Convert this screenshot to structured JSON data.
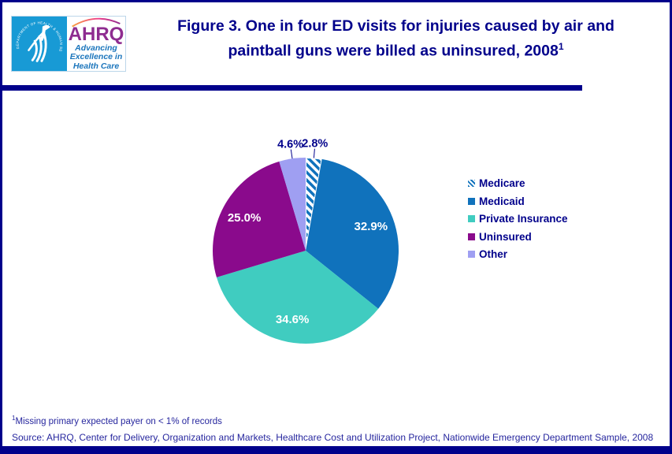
{
  "header": {
    "logo": {
      "hhs_circular_text": "DEPARTMENT OF HEALTH & HUMAN SERVICES • USA",
      "ahrq": "AHRQ",
      "tagline_lines": [
        "Advancing",
        "Excellence in",
        "Health Care"
      ]
    },
    "title_line1": "Figure 3. One in four ED visits for injuries caused by air and",
    "title_line2": "paintball guns were billed as uninsured, 2008",
    "title_superscript": "1"
  },
  "chart_data": {
    "type": "pie",
    "title": "Figure 3. One in four ED visits for injuries caused by air and paintball guns were billed as uninsured, 2008",
    "categories": [
      "Medicare",
      "Medicaid",
      "Private Insurance",
      "Uninsured",
      "Other"
    ],
    "values": [
      2.8,
      32.9,
      34.6,
      25.0,
      4.6
    ],
    "labels": [
      "2.8%",
      "32.9%",
      "34.6%",
      "25.0%",
      "4.6%"
    ],
    "colors": [
      "hatch",
      "#1072BC",
      "#40CCC0",
      "#8A0A8C",
      "#9F9FF2"
    ],
    "hatch_stripe_color": "#1072BC",
    "label_placement": [
      "outside",
      "inside",
      "inside",
      "inside",
      "outside"
    ],
    "inside_label_color": "#FFFFFF",
    "outside_label_color": "#00008B",
    "start_angle_deg": 0,
    "direction": "clockwise",
    "legend_position": "right",
    "legend_text_color": "#00008B"
  },
  "footer": {
    "footnote_superscript": "1",
    "footnote_text": "Missing primary expected payer on < 1% of records",
    "source_text": "Source: AHRQ, Center for Delivery, Organization and Markets, Healthcare Cost and Utilization Project, Nationwide Emergency Department Sample, 2008"
  },
  "colors": {
    "accent_navy": "#00008B",
    "logo_square_blue": "#189AD5",
    "logo_purple": "#8E2C90",
    "logo_tagline_blue": "#1B75BC"
  }
}
